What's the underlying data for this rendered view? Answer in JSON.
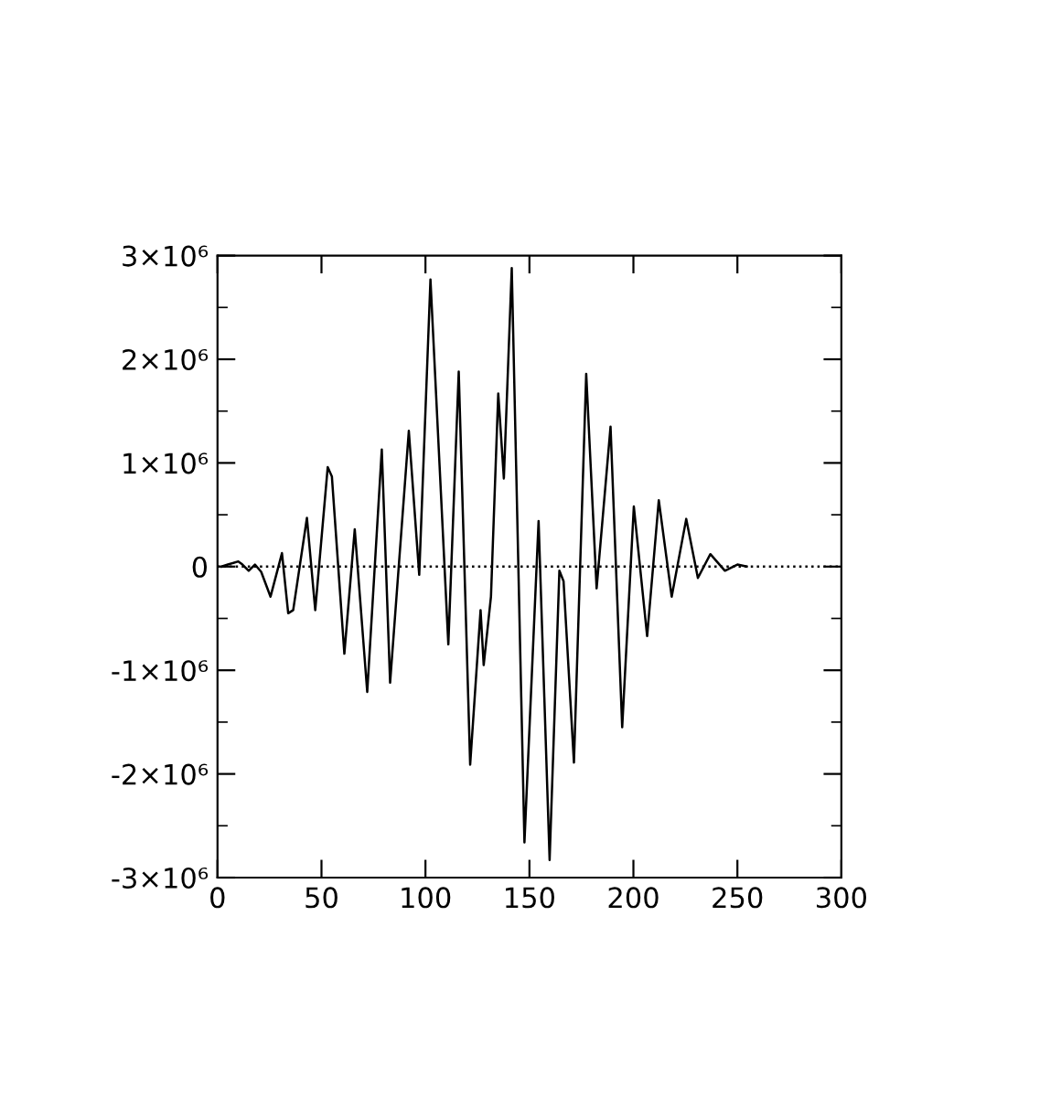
{
  "chart_data": {
    "type": "line",
    "x": [
      2,
      5,
      10,
      12,
      15,
      18,
      21,
      25.5,
      31,
      34,
      36.4,
      43,
      47,
      53,
      55,
      61,
      66,
      72,
      79,
      83,
      92,
      97,
      102.4,
      111,
      116,
      121.5,
      126.5,
      128,
      131.5,
      135,
      137.7,
      141.5,
      147.6,
      154.4,
      159.7,
      164.4,
      166.4,
      171.4,
      177.3,
      182.3,
      189,
      194.6,
      200.2,
      206.6,
      212.2,
      218.4,
      225.4,
      231,
      237,
      244,
      250,
      254.5
    ],
    "series": [
      {
        "color": "#000000",
        "values": [
          0,
          20000,
          50000,
          20000,
          -40000,
          20000,
          -50000,
          -290000,
          130000,
          -450000,
          -420000,
          470000,
          -420000,
          960000,
          870000,
          -840000,
          360000,
          -1210000,
          1130000,
          -1120000,
          1310000,
          -80000,
          2770000,
          -750000,
          1880000,
          -1910000,
          -420000,
          -950000,
          -290000,
          1670000,
          850000,
          2880000,
          -2660000,
          440000,
          -2830000,
          -40000,
          -140000,
          -1890000,
          1860000,
          -210000,
          1350000,
          -1550000,
          580000,
          -670000,
          640000,
          -290000,
          460000,
          -110000,
          120000,
          -40000,
          20000,
          0
        ]
      }
    ],
    "xlim": [
      0,
      300
    ],
    "xticks": [
      0,
      50,
      100,
      150,
      200,
      250,
      300
    ],
    "ylim": [
      -3000000,
      3000000
    ],
    "yticks": [
      {
        "value": -3000000,
        "label": "-3×10⁶"
      },
      {
        "value": -2500000,
        "label": null
      },
      {
        "value": -2000000,
        "label": "-2×10⁶"
      },
      {
        "value": -1500000,
        "label": null
      },
      {
        "value": -1000000,
        "label": "-1×10⁶"
      },
      {
        "value": -500000,
        "label": null
      },
      {
        "value": 0,
        "label": "0"
      },
      {
        "value": 500000,
        "label": null
      },
      {
        "value": 1000000,
        "label": "1×10⁶"
      },
      {
        "value": 1500000,
        "label": null
      },
      {
        "value": 2000000,
        "label": "2×10⁶"
      },
      {
        "value": 2500000,
        "label": null
      },
      {
        "value": 3000000,
        "label": "3×10⁶"
      }
    ],
    "ref_lines": [
      {
        "axis": "y",
        "value": 0,
        "color": "#000000",
        "line_style": "dotted"
      }
    ],
    "grid": false,
    "legend": false,
    "marker": "none",
    "line_style": "solid"
  }
}
